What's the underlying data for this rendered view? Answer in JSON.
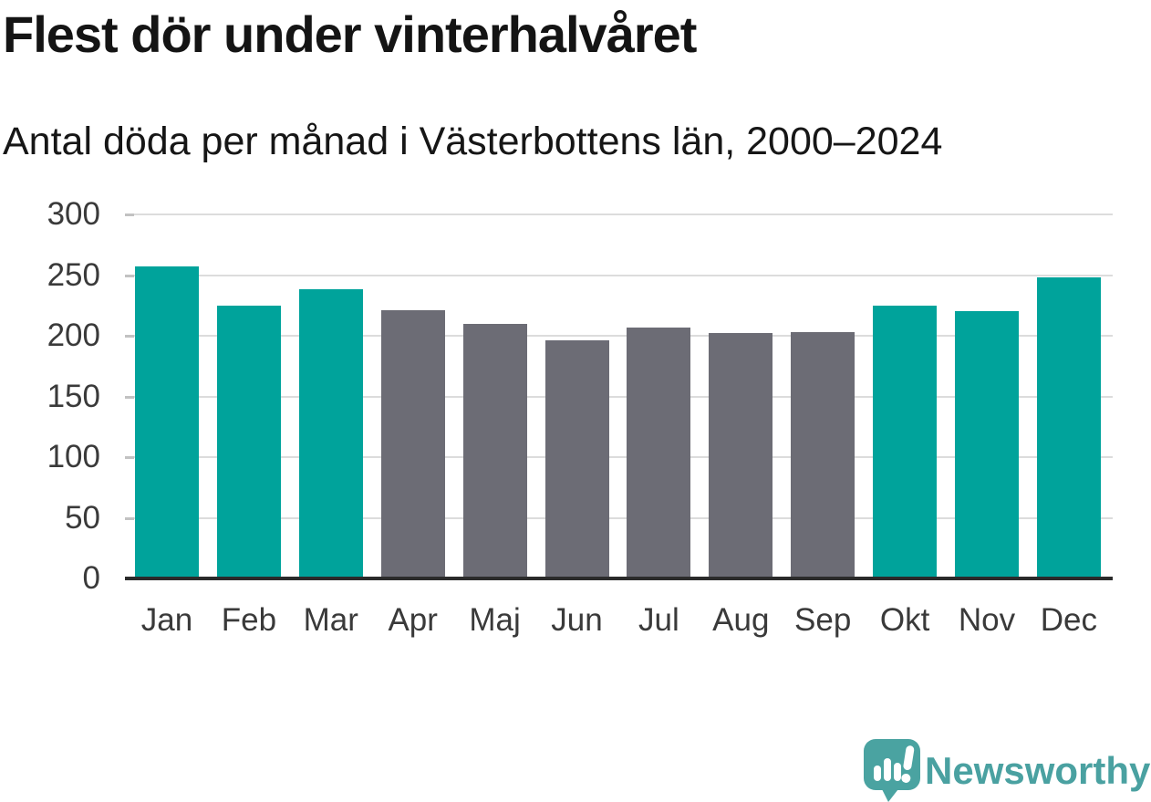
{
  "page": {
    "background": "#ffffff"
  },
  "chart_data": {
    "type": "bar",
    "title": "Flest dör under vinterhalvåret",
    "subtitle": "Antal döda per månad i Västerbottens län, 2000–2024",
    "categories": [
      "Jan",
      "Feb",
      "Mar",
      "Apr",
      "Maj",
      "Jun",
      "Jul",
      "Aug",
      "Sep",
      "Okt",
      "Nov",
      "Dec"
    ],
    "values": [
      257,
      225,
      238,
      221,
      210,
      196,
      207,
      202,
      203,
      225,
      220,
      248
    ],
    "highlighted": [
      true,
      true,
      true,
      false,
      false,
      false,
      false,
      false,
      false,
      true,
      true,
      true
    ],
    "xlabel": "",
    "ylabel": "",
    "ylim": [
      0,
      300
    ],
    "yticks": [
      0,
      50,
      100,
      150,
      200,
      250,
      300
    ],
    "grid": "horizontal",
    "legend": "none",
    "colors": {
      "highlight_bar": "#00a39b",
      "default_bar": "#6c6c75",
      "gridline": "#dcdcdc",
      "axis": "#2b2b2b",
      "tick_text": "#3a3a3a"
    }
  },
  "branding": {
    "logo_text": "Newsworthy",
    "logo_icon": "newsworthy-chart-bubble-icon",
    "brand_color": "#4aa1a1"
  }
}
